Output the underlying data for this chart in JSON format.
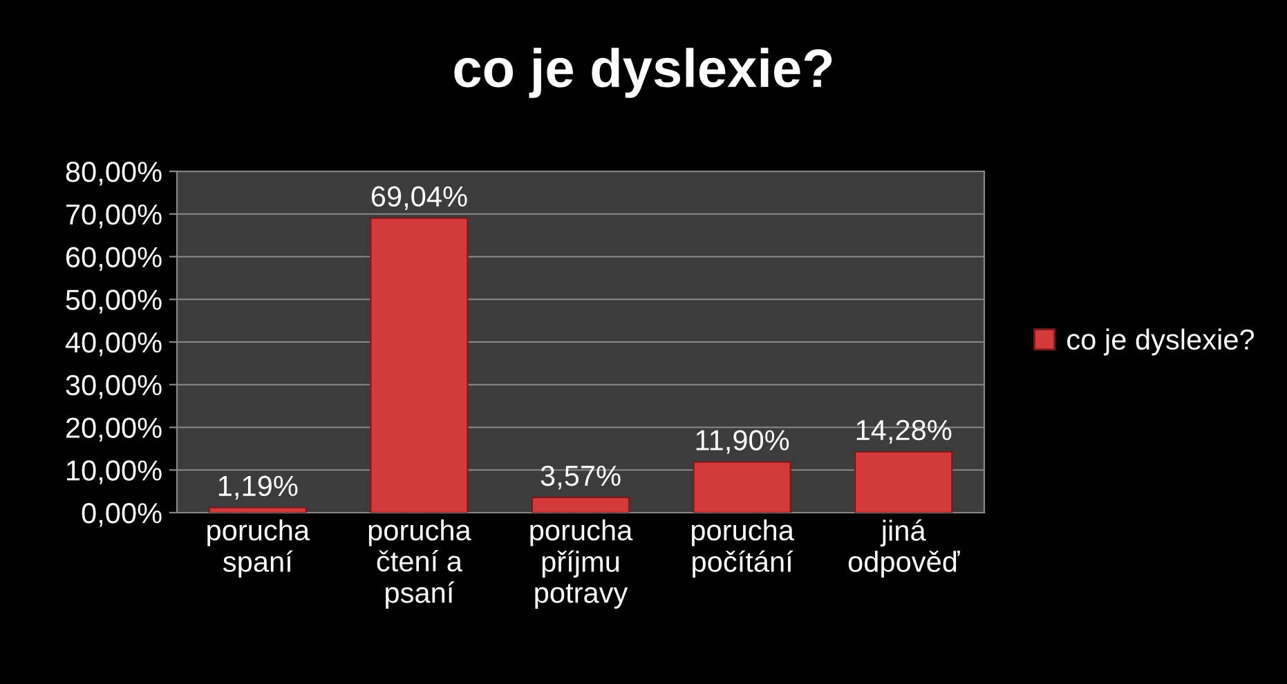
{
  "chart_data": {
    "type": "bar",
    "title": "co je dyslexie?",
    "categories": [
      "porucha\nspaní",
      "porucha\nčtení a\npsaní",
      "porucha\npříjmu\npotravy",
      "porucha\npočítání",
      "jiná\nodpověď"
    ],
    "series": [
      {
        "name": "co je dyslexie?",
        "color": "#d43a3a",
        "values": [
          1.19,
          69.04,
          3.57,
          11.9,
          14.28
        ],
        "value_labels": [
          "1,19%",
          "69,04%",
          "3,57%",
          "11,90%",
          "14,28%"
        ]
      }
    ],
    "ylim": [
      0,
      80
    ],
    "yticks": [
      {
        "value": 0,
        "label": "0,00%"
      },
      {
        "value": 10,
        "label": "10,00%"
      },
      {
        "value": 20,
        "label": "20,00%"
      },
      {
        "value": 30,
        "label": "30,00%"
      },
      {
        "value": 40,
        "label": "40,00%"
      },
      {
        "value": 50,
        "label": "50,00%"
      },
      {
        "value": 60,
        "label": "60,00%"
      },
      {
        "value": 70,
        "label": "70,00%"
      },
      {
        "value": 80,
        "label": "80,00%"
      }
    ],
    "grid": "y",
    "legend": "right"
  }
}
